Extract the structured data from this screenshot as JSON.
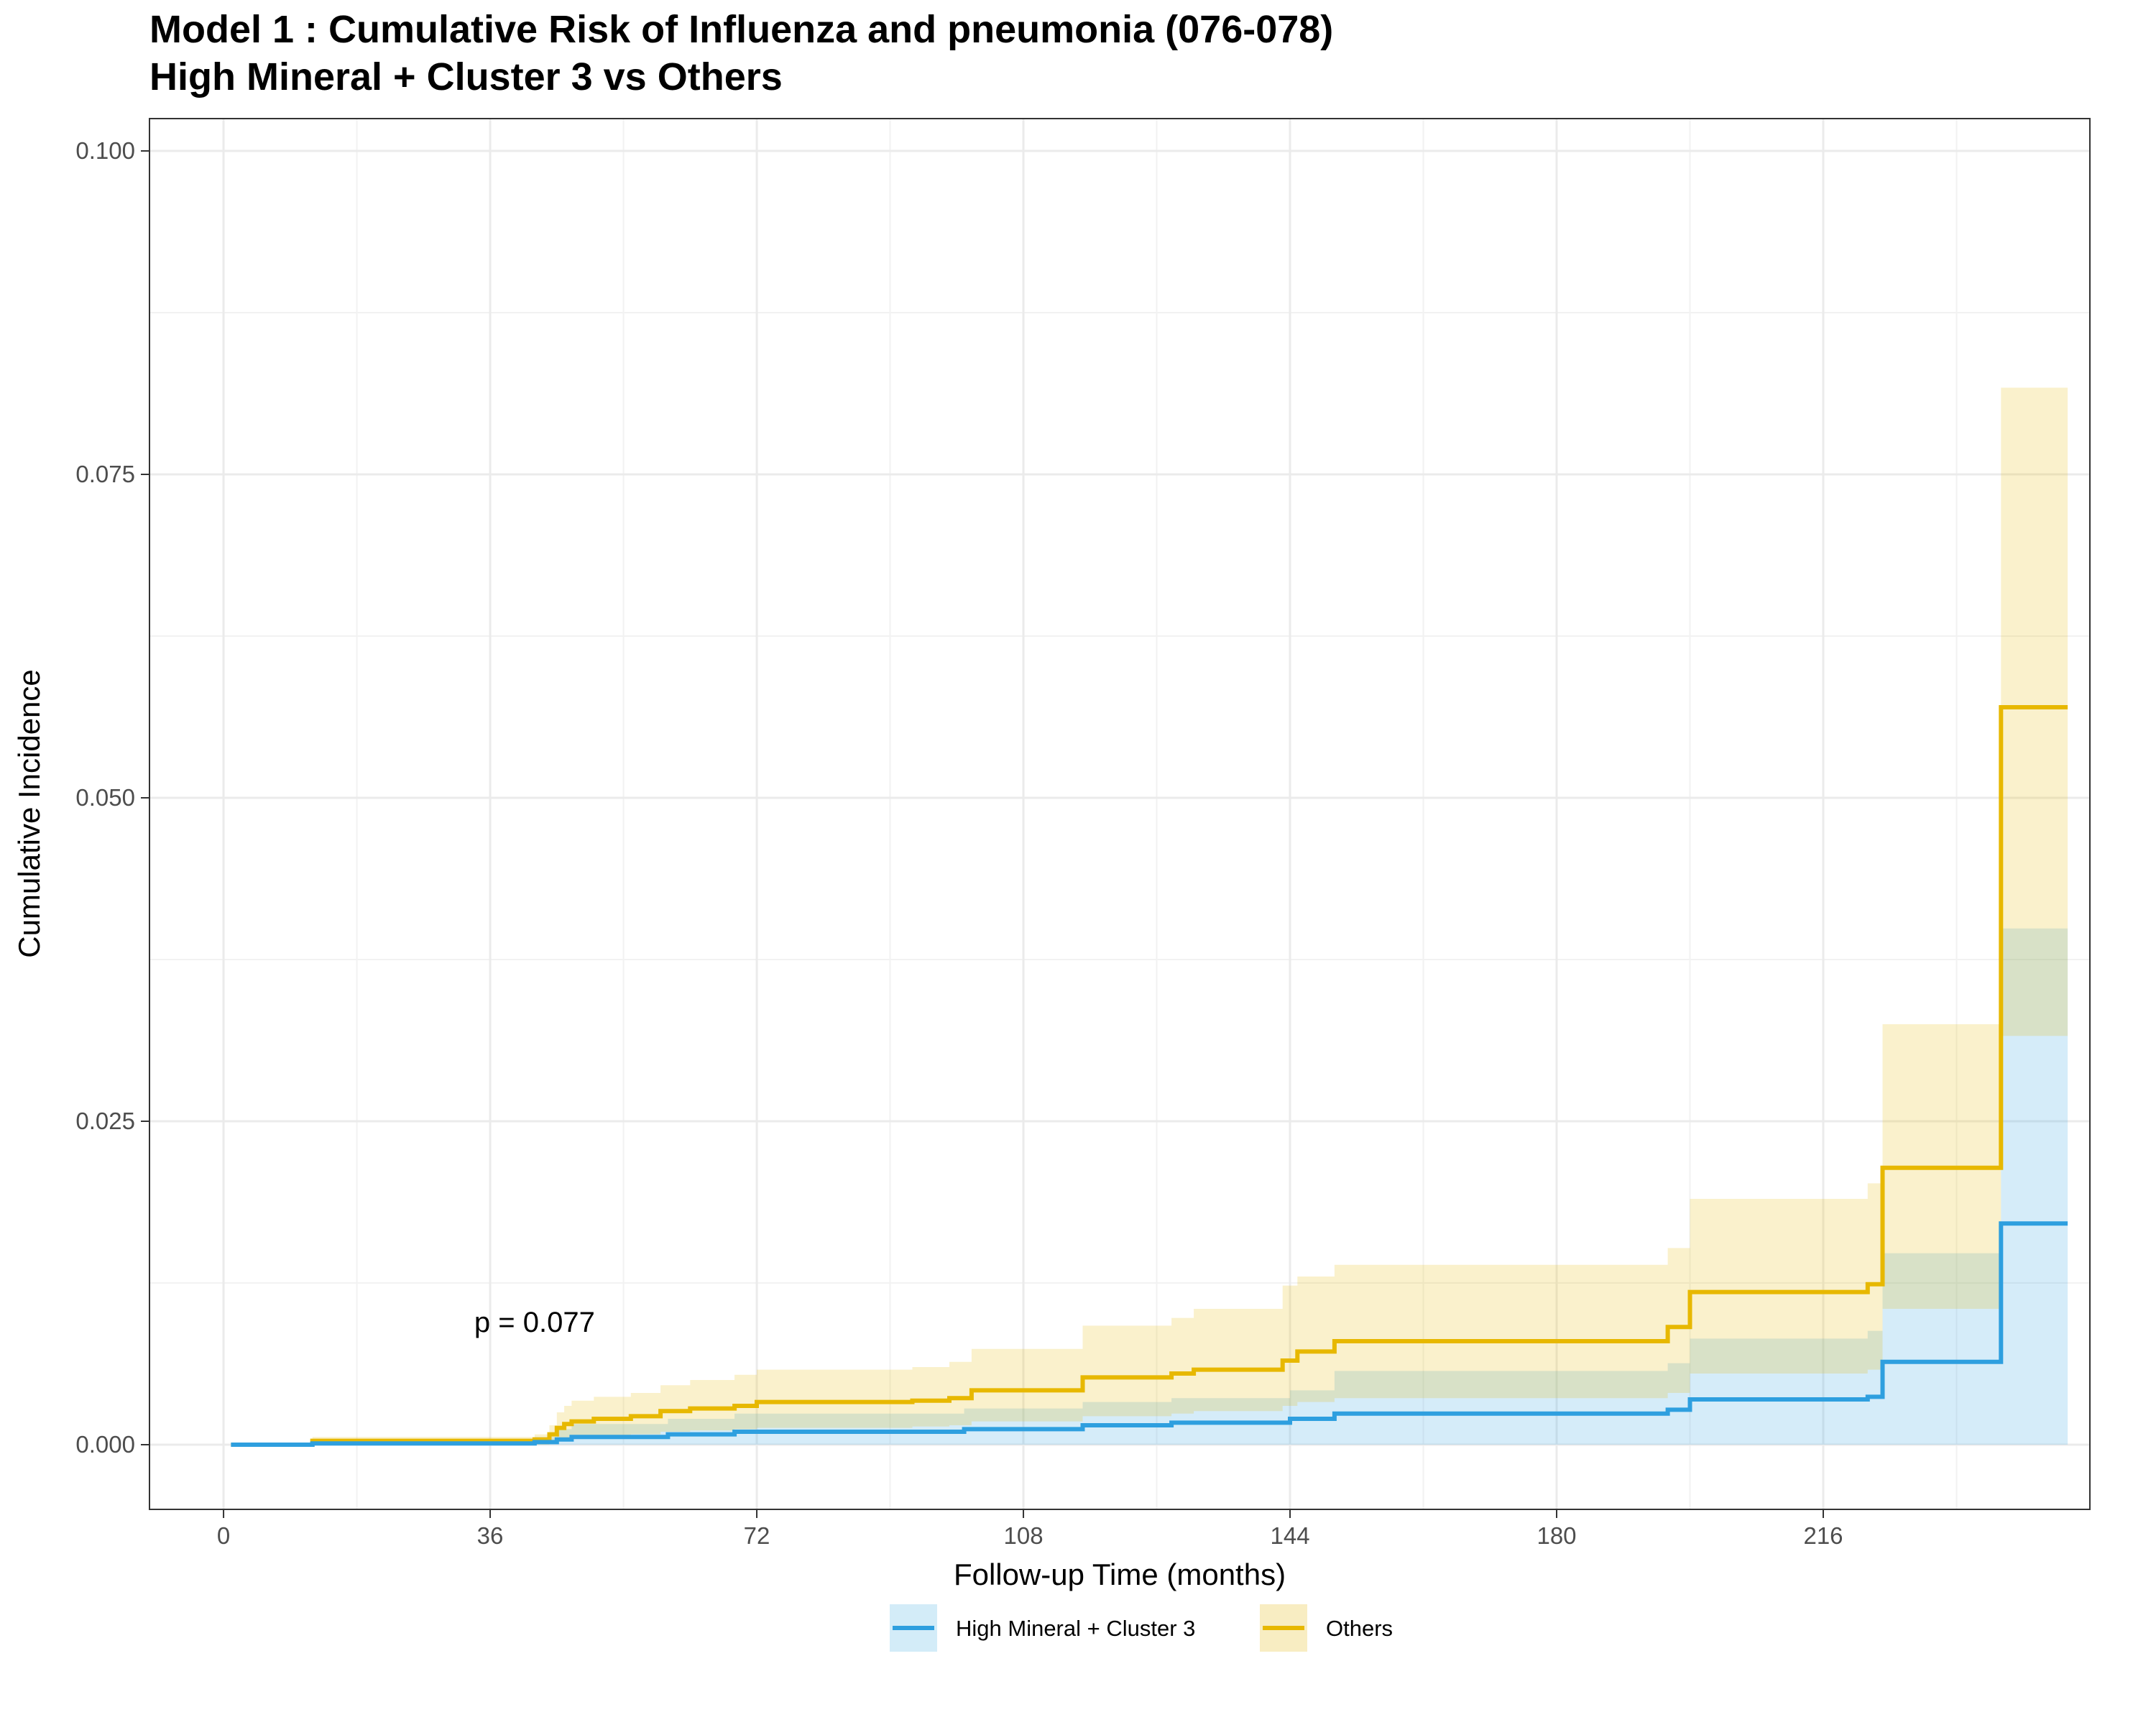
{
  "chart_data": {
    "type": "line",
    "title": "Model 1 : Cumulative Risk of Influenza and pneumonia (076-078)",
    "subtitle": "High Mineral + Cluster 3 vs Others",
    "xlabel": "Follow-up Time (months)",
    "ylabel": "Cumulative Incidence",
    "xlim": [
      -10,
      252
    ],
    "ylim": [
      -0.005,
      0.1025
    ],
    "x_ticks": [
      0,
      36,
      72,
      108,
      144,
      180,
      216
    ],
    "y_ticks": [
      0.0,
      0.025,
      0.05,
      0.075,
      0.1
    ],
    "x_tick_labels": [
      "0",
      "36",
      "72",
      "108",
      "144",
      "180",
      "216"
    ],
    "y_tick_labels": [
      "0.000",
      "0.025",
      "0.050",
      "0.075",
      "0.100"
    ],
    "grid": true,
    "legend_position": "bottom",
    "annotation": {
      "text": "p = 0.077",
      "x": 42,
      "y": 0.0095
    },
    "series": [
      {
        "name": "High Mineral + Cluster 3",
        "color": "#2E9FDF",
        "band_color": "#D3ECF8",
        "x": [
          1,
          12,
          42,
          45,
          47,
          60,
          69,
          100,
          116,
          128,
          144,
          150,
          195,
          198,
          222,
          224,
          240,
          249
        ],
        "y": [
          0,
          0.0001,
          0.0002,
          0.0004,
          0.0006,
          0.0008,
          0.001,
          0.0012,
          0.0015,
          0.0017,
          0.002,
          0.0024,
          0.0027,
          0.0035,
          0.0037,
          0.0064,
          0.0171,
          0.0171
        ],
        "lower": [
          0,
          0,
          0,
          0,
          0,
          0,
          0,
          0,
          0,
          0,
          0,
          0,
          0,
          0,
          0,
          0,
          0,
          0
        ],
        "upper": [
          0,
          0.0002,
          0.0006,
          0.0012,
          0.0016,
          0.002,
          0.0024,
          0.0028,
          0.0033,
          0.0036,
          0.0042,
          0.0057,
          0.0063,
          0.0082,
          0.0088,
          0.0148,
          0.0399,
          0.0399
        ]
      },
      {
        "name": "Others",
        "color": "#E7B800",
        "band_color": "#F8EDC2",
        "x": [
          1,
          12,
          42,
          44,
          45,
          46,
          47,
          50,
          55,
          59,
          63,
          69,
          72,
          93,
          98,
          101,
          116,
          128,
          131,
          143,
          145,
          150,
          195,
          198,
          222,
          224,
          240,
          249
        ],
        "y": [
          0,
          0.0003,
          0.0004,
          0.0008,
          0.0013,
          0.0016,
          0.0018,
          0.002,
          0.0022,
          0.0026,
          0.0028,
          0.003,
          0.0033,
          0.0034,
          0.0036,
          0.0042,
          0.0052,
          0.0055,
          0.0058,
          0.0065,
          0.0072,
          0.008,
          0.0091,
          0.0118,
          0.0124,
          0.0214,
          0.057,
          0.057
        ],
        "lower": [
          0,
          0,
          0,
          0.0001,
          0.0003,
          0.0005,
          0.0006,
          0.0007,
          0.0008,
          0.001,
          0.0011,
          0.0012,
          0.0013,
          0.0014,
          0.0015,
          0.0018,
          0.0022,
          0.0024,
          0.0026,
          0.003,
          0.0033,
          0.0036,
          0.004,
          0.0055,
          0.0058,
          0.0105,
          0.0316,
          0.0316
        ],
        "upper": [
          0,
          0.0006,
          0.0008,
          0.0015,
          0.0025,
          0.003,
          0.0034,
          0.0037,
          0.004,
          0.0046,
          0.005,
          0.0054,
          0.0058,
          0.006,
          0.0064,
          0.0074,
          0.0092,
          0.0098,
          0.0105,
          0.0123,
          0.013,
          0.0139,
          0.0152,
          0.019,
          0.0202,
          0.0325,
          0.0817,
          0.0817
        ]
      }
    ]
  }
}
